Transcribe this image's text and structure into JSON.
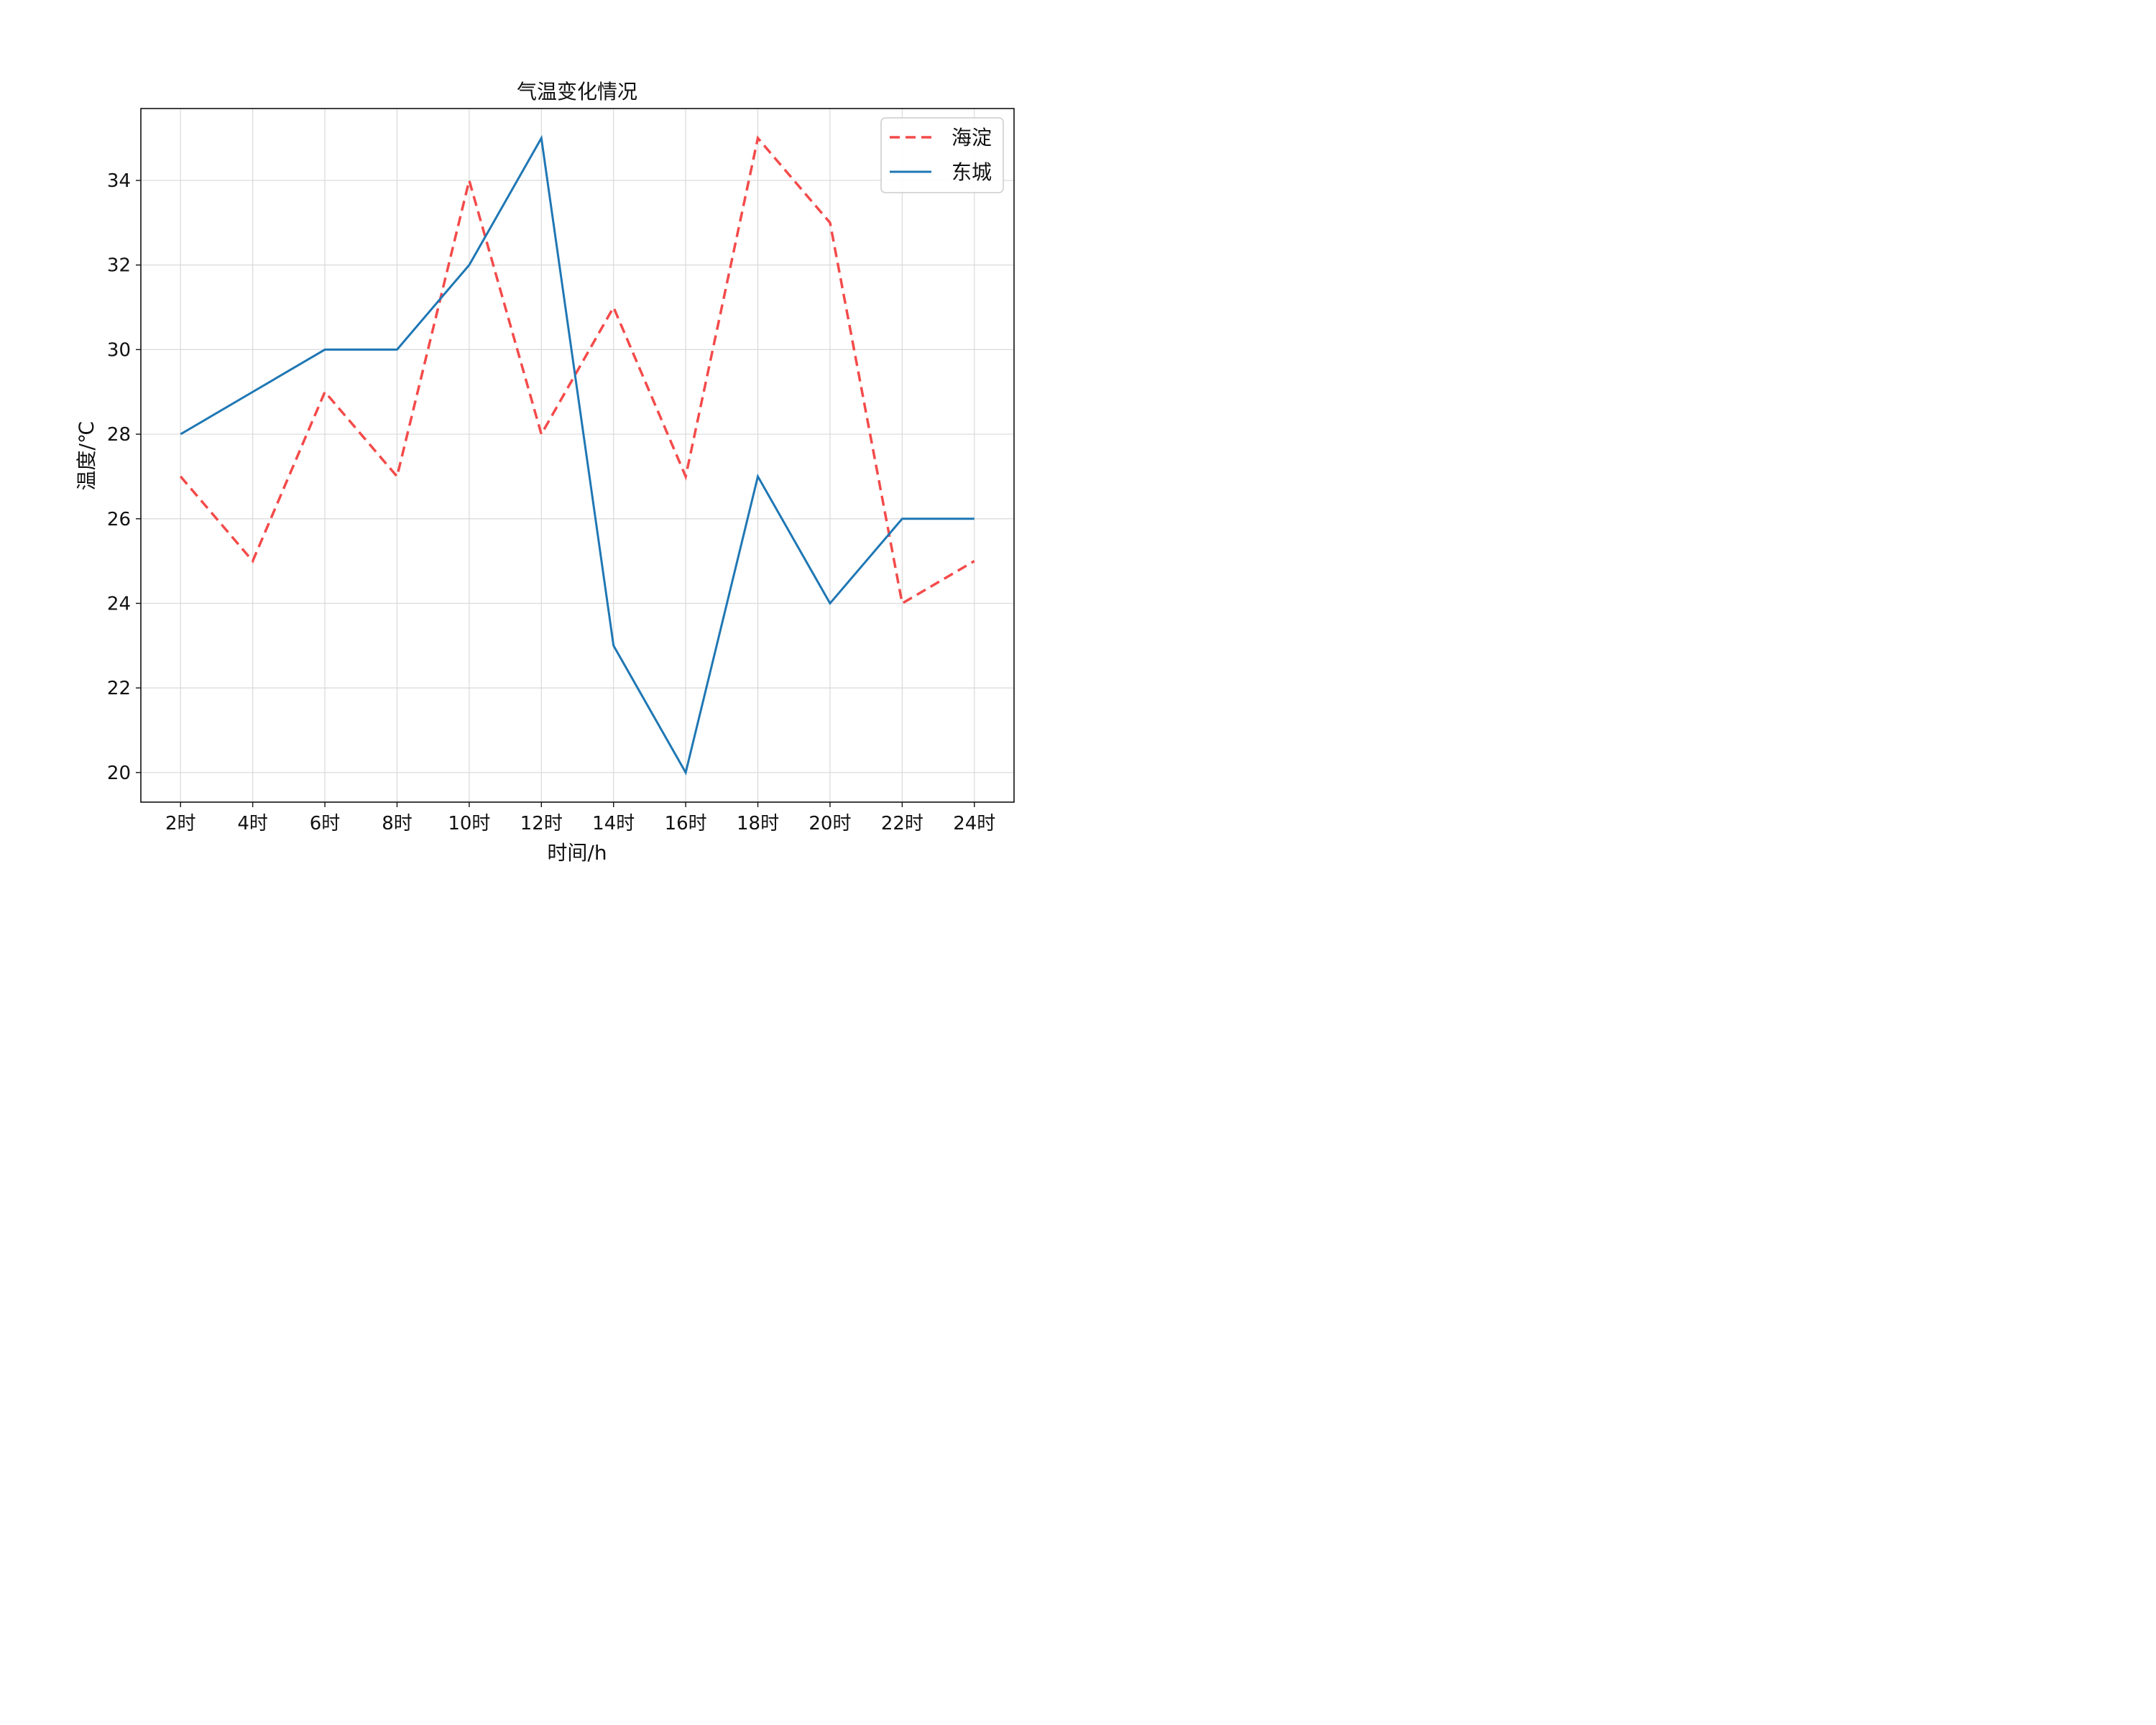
{
  "chart_data": {
    "type": "line",
    "title": "气温变化情况",
    "xlabel": "时间/h",
    "ylabel": "温度/℃",
    "categories": [
      "2时",
      "4时",
      "6时",
      "8时",
      "10时",
      "12时",
      "14时",
      "16时",
      "18时",
      "20时",
      "22时",
      "24时"
    ],
    "x": [
      2,
      4,
      6,
      8,
      10,
      12,
      14,
      16,
      18,
      20,
      22,
      24
    ],
    "yticks": [
      20,
      22,
      24,
      26,
      28,
      30,
      32,
      34
    ],
    "ylim": [
      19.3,
      35.7
    ],
    "xlim": [
      0.9,
      25.1
    ],
    "grid": true,
    "legend_position": "top-right",
    "series": [
      {
        "name": "海淀",
        "values": [
          27,
          25,
          29,
          27,
          34,
          28,
          31,
          27,
          35,
          33,
          24,
          25
        ],
        "color": "#f44a4a",
        "line_style": "dashed"
      },
      {
        "name": "东城",
        "values": [
          28,
          29,
          30,
          30,
          32,
          35,
          23,
          20,
          27,
          24,
          26,
          26
        ],
        "color": "#1f77b4",
        "line_style": "solid"
      }
    ]
  }
}
